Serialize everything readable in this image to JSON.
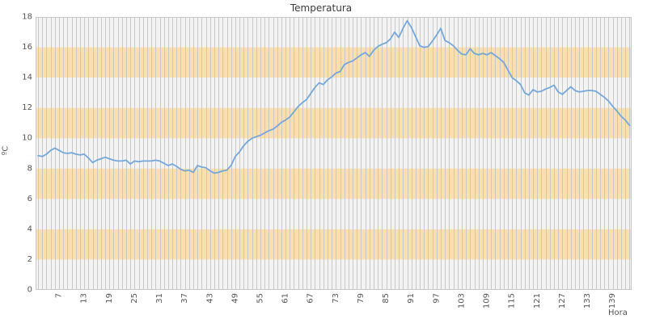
{
  "title": "Temperatura",
  "colors": {
    "line": "#74a7db",
    "band": "#fcdfae",
    "grid": "#c8c8c8",
    "plot_bg": "#f3f3f3",
    "border": "#c8c8c8",
    "tick_text": "#555555",
    "title_text": "#3c3c3c"
  },
  "chart_data": {
    "type": "line",
    "title": "Temperatura",
    "xlabel": "Hora",
    "ylabel": "ºC",
    "xlim": [
      1.4,
      143.5
    ],
    "ylim": [
      0,
      18
    ],
    "x_ticks": [
      7,
      13,
      19,
      25,
      31,
      37,
      43,
      49,
      55,
      61,
      67,
      73,
      79,
      85,
      91,
      97,
      103,
      109,
      115,
      121,
      127,
      133,
      139
    ],
    "y_ticks": [
      0,
      2,
      4,
      6,
      8,
      10,
      12,
      14,
      16,
      18
    ],
    "grid": "vertical-every-hour",
    "legend": "none",
    "bands_y": [
      [
        2,
        4
      ],
      [
        6,
        8
      ],
      [
        10,
        12
      ],
      [
        14,
        16
      ]
    ],
    "hour_start": 2,
    "hour_step": 1,
    "values": [
      8.85,
      8.8,
      8.95,
      9.2,
      9.35,
      9.2,
      9.05,
      9.0,
      9.05,
      8.95,
      8.9,
      8.95,
      8.7,
      8.4,
      8.55,
      8.65,
      8.75,
      8.65,
      8.55,
      8.5,
      8.5,
      8.55,
      8.3,
      8.5,
      8.45,
      8.5,
      8.5,
      8.5,
      8.55,
      8.5,
      8.35,
      8.2,
      8.3,
      8.15,
      7.95,
      7.85,
      7.9,
      7.75,
      8.2,
      8.1,
      8.05,
      7.85,
      7.7,
      7.75,
      7.85,
      7.9,
      8.2,
      8.8,
      9.1,
      9.5,
      9.8,
      10.0,
      10.1,
      10.2,
      10.35,
      10.5,
      10.6,
      10.8,
      11.05,
      11.2,
      11.4,
      11.75,
      12.1,
      12.35,
      12.55,
      12.95,
      13.35,
      13.65,
      13.55,
      13.85,
      14.05,
      14.3,
      14.4,
      14.85,
      15.0,
      15.1,
      15.3,
      15.5,
      15.65,
      15.4,
      15.8,
      16.05,
      16.2,
      16.3,
      16.55,
      17.0,
      16.65,
      17.25,
      17.75,
      17.3,
      16.7,
      16.1,
      16.0,
      16.05,
      16.4,
      16.8,
      17.25,
      16.45,
      16.3,
      16.1,
      15.8,
      15.55,
      15.5,
      15.9,
      15.6,
      15.5,
      15.6,
      15.5,
      15.65,
      15.45,
      15.25,
      15.0,
      14.5,
      14.0,
      13.8,
      13.55,
      13.0,
      12.85,
      13.2,
      13.05,
      13.1,
      13.25,
      13.35,
      13.5,
      13.05,
      12.9,
      13.15,
      13.4,
      13.15,
      13.05,
      13.1,
      13.15,
      13.15,
      13.1,
      12.9,
      12.7,
      12.45,
      12.1,
      11.8,
      11.45,
      11.2,
      10.85
    ]
  }
}
